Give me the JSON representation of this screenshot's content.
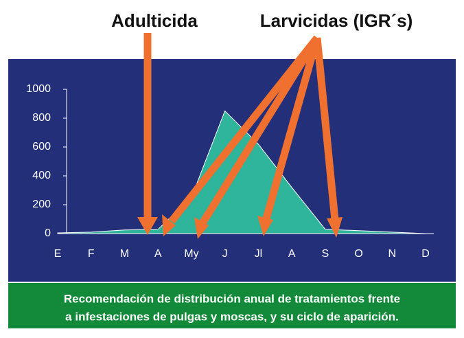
{
  "chart_data": {
    "type": "area",
    "annotations": [
      "Adulticida",
      "Larvicidas (IGR´s)"
    ],
    "categories": [
      "E",
      "F",
      "M",
      "A",
      "My",
      "J",
      "Jl",
      "A",
      "S",
      "O",
      "N",
      "D"
    ],
    "values": [
      5,
      10,
      25,
      30,
      250,
      850,
      620,
      320,
      30,
      20,
      10,
      0
    ],
    "color": "#2fb59b",
    "ylim": [
      0,
      1000
    ],
    "yticks": [
      0,
      200,
      400,
      600,
      800,
      1000
    ],
    "caption": [
      "Recomendación de distribución anual de tratamientos frente",
      "a infestaciones de pulgas y moscas, y su ciclo de aparición."
    ]
  }
}
